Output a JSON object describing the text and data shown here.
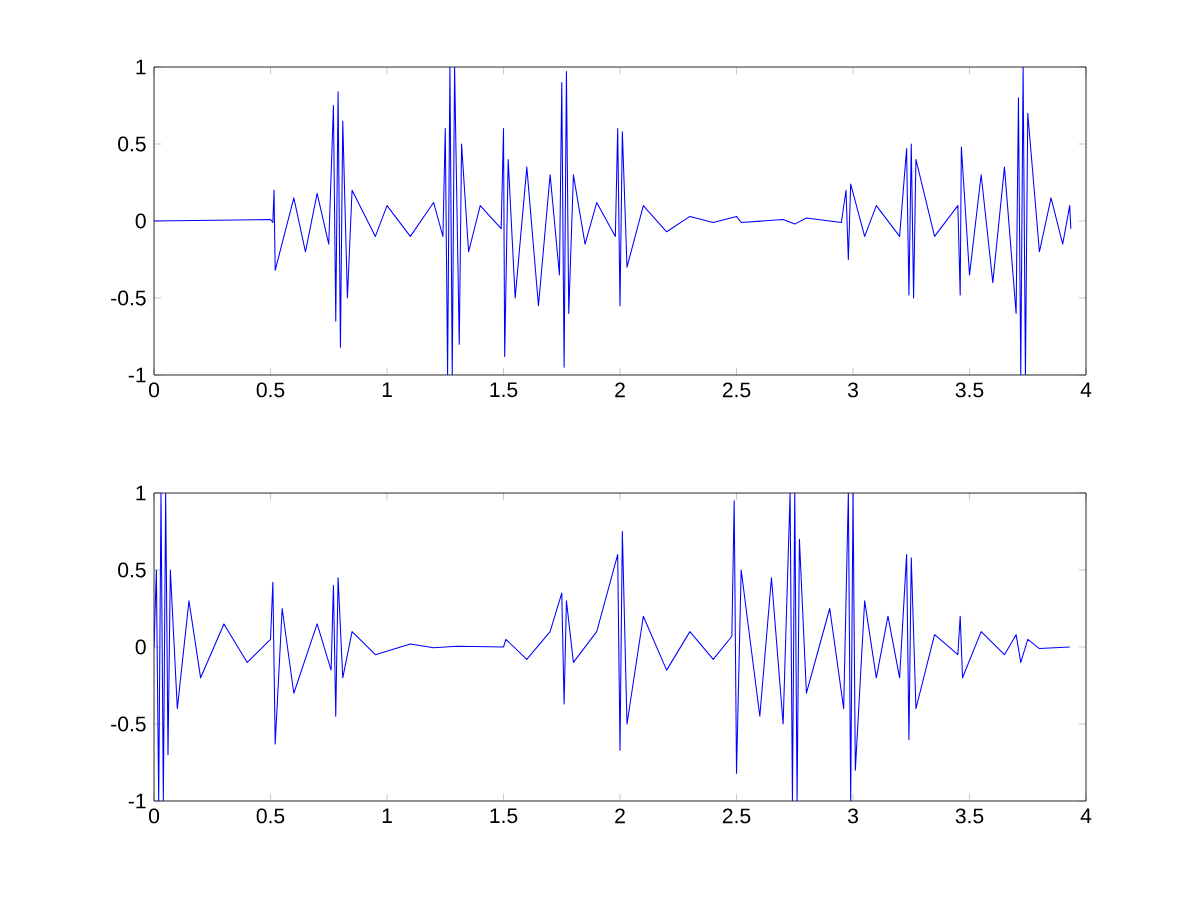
{
  "chart_data": [
    {
      "type": "line",
      "xlim": [
        0,
        4
      ],
      "ylim": [
        -1,
        1
      ],
      "xticks": [
        0,
        0.5,
        1,
        1.5,
        2,
        2.5,
        3,
        3.5,
        4
      ],
      "yticks": [
        -1,
        -0.5,
        0,
        0.5,
        1
      ],
      "series": [
        {
          "color": "#0000ff",
          "x": [
            0,
            0.5,
            0.51,
            0.515,
            0.52,
            0.6,
            0.65,
            0.7,
            0.75,
            0.77,
            0.78,
            0.79,
            0.8,
            0.81,
            0.83,
            0.85,
            0.95,
            1.0,
            1.1,
            1.2,
            1.24,
            1.25,
            1.26,
            1.27,
            1.28,
            1.29,
            1.31,
            1.32,
            1.35,
            1.4,
            1.49,
            1.5,
            1.505,
            1.52,
            1.55,
            1.6,
            1.65,
            1.7,
            1.74,
            1.75,
            1.76,
            1.77,
            1.78,
            1.8,
            1.85,
            1.9,
            1.98,
            1.99,
            2.0,
            2.01,
            2.03,
            2.1,
            2.2,
            2.3,
            2.4,
            2.5,
            2.52,
            2.7,
            2.75,
            2.8,
            2.95,
            2.97,
            2.98,
            2.99,
            3.05,
            3.1,
            3.2,
            3.23,
            3.24,
            3.25,
            3.26,
            3.27,
            3.35,
            3.45,
            3.46,
            3.465,
            3.5,
            3.55,
            3.6,
            3.65,
            3.7,
            3.71,
            3.72,
            3.73,
            3.74,
            3.75,
            3.8,
            3.85,
            3.9,
            3.93,
            3.935
          ],
          "values": [
            0,
            0.01,
            -0.01,
            0.2,
            -0.32,
            0.15,
            -0.2,
            0.18,
            -0.15,
            0.75,
            -0.65,
            0.84,
            -0.82,
            0.65,
            -0.5,
            0.2,
            -0.1,
            0.1,
            -0.1,
            0.12,
            -0.1,
            0.6,
            -1,
            1,
            -1,
            1,
            -0.8,
            0.5,
            -0.2,
            0.1,
            -0.05,
            0.6,
            -0.88,
            0.4,
            -0.5,
            0.35,
            -0.55,
            0.3,
            -0.35,
            0.9,
            -0.95,
            0.97,
            -0.6,
            0.3,
            -0.15,
            0.12,
            -0.1,
            0.6,
            -0.55,
            0.58,
            -0.3,
            0.1,
            -0.07,
            0.03,
            -0.01,
            0.03,
            -0.01,
            0.01,
            -0.02,
            0.02,
            -0.01,
            0.2,
            -0.25,
            0.24,
            -0.1,
            0.1,
            -0.1,
            0.47,
            -0.48,
            0.5,
            -0.5,
            0.4,
            -0.1,
            0.1,
            -0.48,
            0.48,
            -0.35,
            0.3,
            -0.4,
            0.35,
            -0.6,
            0.8,
            -1,
            1,
            -1,
            0.7,
            -0.2,
            0.15,
            -0.15,
            0.1,
            -0.05
          ]
        }
      ]
    },
    {
      "type": "line",
      "xlim": [
        0,
        4
      ],
      "ylim": [
        -1,
        1
      ],
      "xticks": [
        0,
        0.5,
        1,
        1.5,
        2,
        2.5,
        3,
        3.5,
        4
      ],
      "yticks": [
        -1,
        -0.5,
        0,
        0.5,
        1
      ],
      "series": [
        {
          "color": "#0000ff",
          "x": [
            0,
            0.01,
            0.02,
            0.03,
            0.04,
            0.05,
            0.06,
            0.07,
            0.1,
            0.15,
            0.2,
            0.3,
            0.4,
            0.5,
            0.51,
            0.52,
            0.55,
            0.6,
            0.7,
            0.76,
            0.77,
            0.78,
            0.79,
            0.81,
            0.85,
            0.95,
            1.1,
            1.2,
            1.3,
            1.5,
            1.51,
            1.6,
            1.7,
            1.75,
            1.76,
            1.77,
            1.8,
            1.9,
            1.99,
            2.0,
            2.01,
            2.03,
            2.1,
            2.2,
            2.3,
            2.4,
            2.48,
            2.49,
            2.5,
            2.52,
            2.6,
            2.65,
            2.7,
            2.73,
            2.74,
            2.75,
            2.76,
            2.77,
            2.8,
            2.9,
            2.96,
            2.98,
            2.99,
            3.0,
            3.01,
            3.05,
            3.1,
            3.15,
            3.2,
            3.23,
            3.24,
            3.25,
            3.27,
            3.35,
            3.45,
            3.46,
            3.47,
            3.55,
            3.65,
            3.7,
            3.72,
            3.75,
            3.8,
            3.93
          ],
          "values": [
            0,
            0.5,
            -1,
            1,
            -1,
            1,
            -0.7,
            0.5,
            -0.4,
            0.3,
            -0.2,
            0.15,
            -0.1,
            0.05,
            0.42,
            -0.63,
            0.25,
            -0.3,
            0.15,
            -0.15,
            0.4,
            -0.45,
            0.45,
            -0.2,
            0.1,
            -0.05,
            0.02,
            -0.005,
            0.005,
            0,
            0.05,
            -0.08,
            0.1,
            0.35,
            -0.37,
            0.3,
            -0.1,
            0.1,
            0.6,
            -0.67,
            0.75,
            -0.5,
            0.2,
            -0.15,
            0.1,
            -0.08,
            0.07,
            0.95,
            -0.82,
            0.5,
            -0.45,
            0.45,
            -0.5,
            1,
            -1,
            1,
            -1,
            0.7,
            -0.3,
            0.25,
            -0.4,
            1,
            -1,
            1,
            -0.8,
            0.3,
            -0.2,
            0.2,
            -0.2,
            0.6,
            -0.6,
            0.58,
            -0.4,
            0.08,
            -0.05,
            0.2,
            -0.2,
            0.1,
            -0.05,
            0.08,
            -0.1,
            0.05,
            -0.01,
            0
          ]
        }
      ]
    }
  ]
}
